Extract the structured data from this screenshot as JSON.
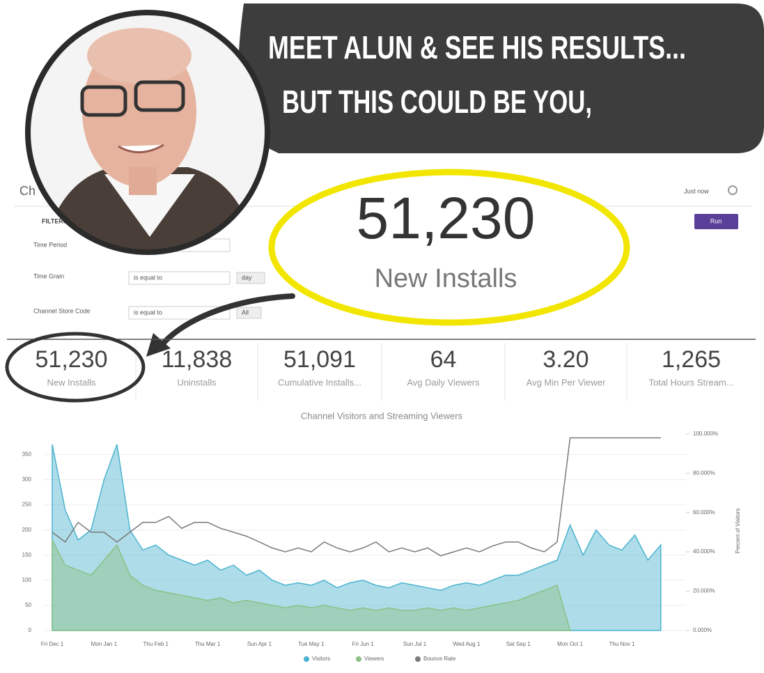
{
  "banner": {
    "headline": [
      "MEET ALUN & SEE HIS RESULTS...",
      "BUT THIS COULD BE YOU,"
    ]
  },
  "dashboard": {
    "title": "Ch",
    "status": "Just now",
    "filters_label": "FILTERS",
    "run": "Run",
    "filters": [
      {
        "label": "Time Period"
      },
      {
        "label": "Time Grain",
        "operator": "is equal to",
        "value": "day"
      },
      {
        "label": "Channel Store Code",
        "operator": "is equal to",
        "value": "All"
      }
    ]
  },
  "highlight": {
    "value": "51,230",
    "label": "New Installs"
  },
  "kpis": [
    {
      "value": "51,230",
      "label": "New Installs"
    },
    {
      "value": "11,838",
      "label": "Uninstalls"
    },
    {
      "value": "51,091",
      "label": "Cumulative Installs..."
    },
    {
      "value": "64",
      "label": "Avg Daily Viewers"
    },
    {
      "value": "3.20",
      "label": "Avg Min Per Viewer"
    },
    {
      "value": "1,265",
      "label": "Total Hours Stream..."
    }
  ],
  "chart_data": {
    "type": "area",
    "title": "Channel Visitors and Streaming Viewers",
    "y2label": "Percent of Visitors",
    "categories": [
      "Fri Dec 1",
      null,
      null,
      null,
      "Mon Jan 1",
      null,
      null,
      null,
      "Thu Feb 1",
      null,
      null,
      null,
      "Thu Mar 1",
      null,
      null,
      null,
      "Sun Apr 1",
      null,
      null,
      null,
      "Tue May 1",
      null,
      null,
      null,
      "Fri Jun 1",
      null,
      null,
      null,
      "Sun Jul 1",
      null,
      null,
      null,
      "Wed Aug 1",
      null,
      null,
      null,
      "Sat Sep 1",
      null,
      null,
      null,
      "Mon Oct 1",
      null,
      null,
      null,
      "Thu Nov 1",
      null,
      null,
      null
    ],
    "ylim": [
      0,
      395
    ],
    "yticks": [
      0,
      50,
      100,
      150,
      200,
      250,
      300,
      350
    ],
    "y2lim": [
      0,
      101
    ],
    "y2ticks": [
      {
        "value": 0,
        "label": "0.000%"
      },
      {
        "value": 20,
        "label": "20.000%"
      },
      {
        "value": 40,
        "label": "40.000%"
      },
      {
        "value": 60,
        "label": "60.000%"
      },
      {
        "value": 80,
        "label": "80.000%"
      },
      {
        "value": 100,
        "label": "100.000%"
      }
    ],
    "grid": true,
    "series": [
      {
        "name": "Visitors",
        "color": "#4bb3cf",
        "values": [
          370,
          240,
          180,
          200,
          300,
          370,
          200,
          160,
          170,
          150,
          140,
          130,
          140,
          120,
          130,
          110,
          120,
          100,
          90,
          95,
          90,
          100,
          85,
          95,
          100,
          90,
          85,
          95,
          90,
          85,
          80,
          90,
          95,
          90,
          100,
          110,
          110,
          120,
          130,
          140,
          210,
          150,
          200,
          170,
          160,
          190,
          140,
          170
        ]
      },
      {
        "name": "Viewers",
        "color": "#8cc084",
        "values": [
          180,
          130,
          120,
          110,
          140,
          170,
          110,
          90,
          80,
          75,
          70,
          65,
          60,
          65,
          55,
          60,
          55,
          50,
          45,
          50,
          45,
          50,
          45,
          40,
          45,
          40,
          45,
          40,
          40,
          45,
          40,
          45,
          40,
          45,
          50,
          55,
          60,
          70,
          80,
          90,
          0,
          null,
          null,
          null,
          null,
          null,
          null,
          null
        ]
      },
      {
        "name": "Bounce Rate",
        "color": "#7a7a7a",
        "axis": "y2",
        "values": [
          50,
          45,
          55,
          50,
          50,
          45,
          50,
          55,
          55,
          58,
          52,
          55,
          55,
          52,
          50,
          48,
          45,
          42,
          40,
          42,
          40,
          45,
          42,
          40,
          42,
          45,
          40,
          42,
          40,
          42,
          38,
          40,
          42,
          40,
          43,
          45,
          45,
          42,
          40,
          45,
          98,
          98,
          98,
          98,
          98,
          98,
          98,
          98
        ]
      }
    ]
  }
}
